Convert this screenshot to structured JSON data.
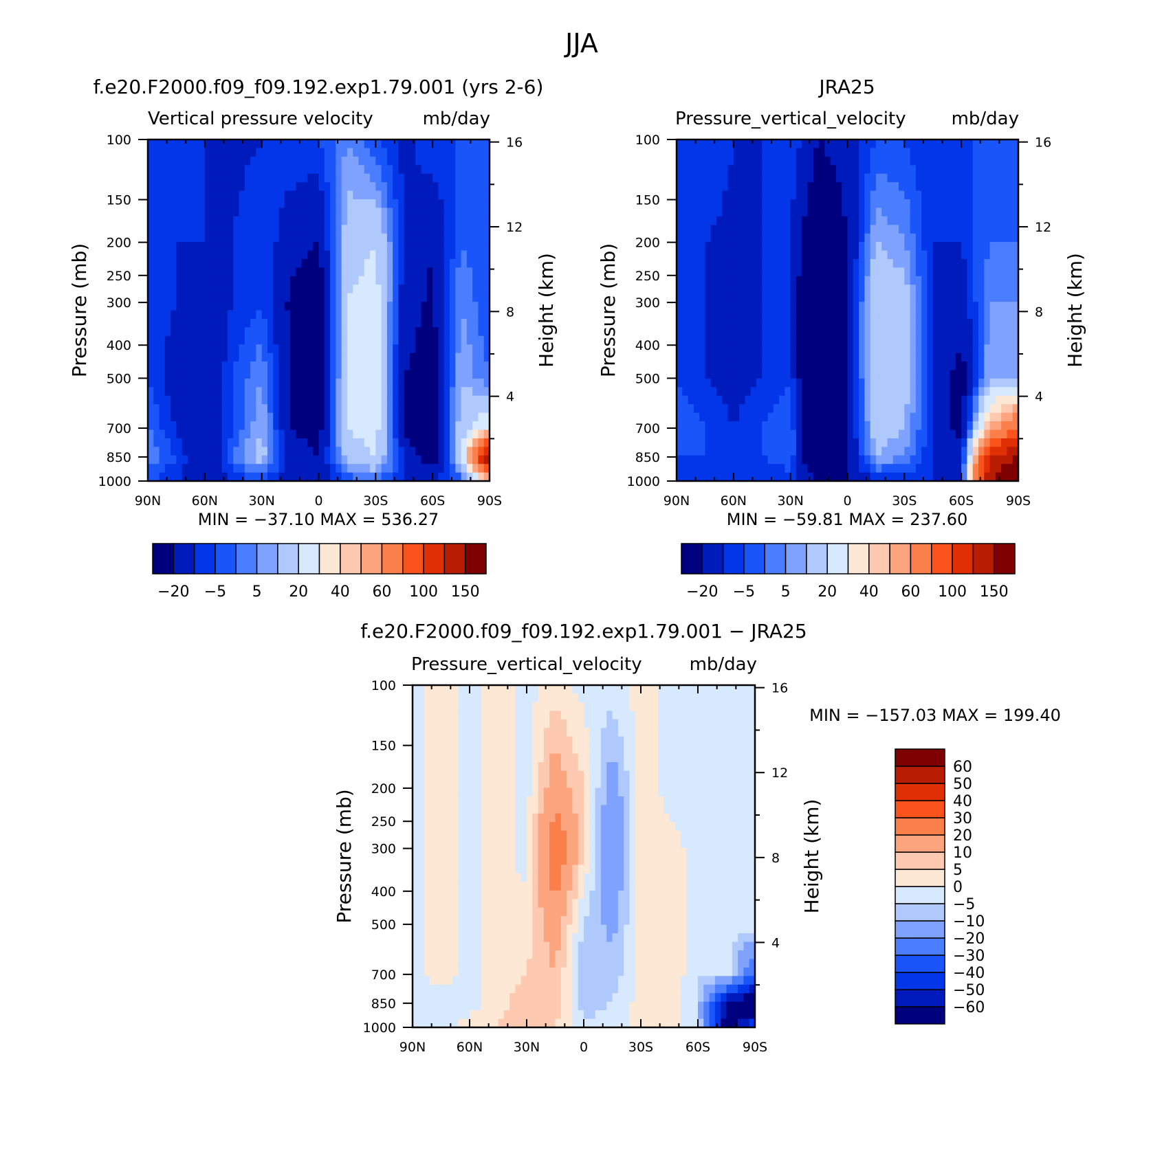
{
  "figure_title": "JJA",
  "chart_data": [
    {
      "type": "heatmap",
      "id": "model",
      "title": "f.e20.F2000.f09_f09.192.exp1.79.001 (yrs 2-6)",
      "subtitle_left": "Vertical pressure velocity",
      "subtitle_right": "mb/day",
      "xlabel": "",
      "ylabel": "Pressure (mb)",
      "ylabel_right": "Height (km)",
      "x_ticks": [
        "90N",
        "60N",
        "30N",
        "0",
        "30S",
        "60S",
        "90S"
      ],
      "x_values": [
        90,
        60,
        30,
        0,
        -30,
        -60,
        -90
      ],
      "xlim": [
        90,
        -90
      ],
      "y_ticks": [
        "100",
        "150",
        "200",
        "250",
        "300",
        "400",
        "500",
        "700",
        "850",
        "1000"
      ],
      "y_values": [
        100,
        150,
        200,
        250,
        300,
        400,
        500,
        700,
        850,
        1000
      ],
      "ylim": [
        1000,
        100
      ],
      "y2_ticks": [
        "16",
        "12",
        "8",
        "4"
      ],
      "y2_values": [
        16,
        12,
        8,
        4
      ],
      "stats": "MIN = −37.10   MAX = 536.27",
      "min": -37.1,
      "max": 536.27,
      "colorbar_orientation": "horizontal",
      "colorbar_labels": [
        "−20",
        "−5",
        "5",
        "20",
        "40",
        "60",
        "100",
        "150"
      ],
      "colorbar_colors": [
        "#00007f",
        "#001bbc",
        "#0336e8",
        "#1a55fa",
        "#4a7efe",
        "#7ea2fd",
        "#b0c9fd",
        "#d7e9fe",
        "#fde8d5",
        "#fdc9b0",
        "#fca47e",
        "#fb7f4a",
        "#f9531b",
        "#e02f04",
        "#b81c02",
        "#7f0000"
      ],
      "ref_lat": [
        90,
        75,
        60,
        45,
        30,
        15,
        0,
        -15,
        -30,
        -45,
        -60,
        -75,
        -90
      ],
      "ref_p": [
        100,
        200,
        300,
        500,
        700,
        850,
        1000
      ],
      "ref_values": [
        [
          -5,
          -10,
          -10,
          -12,
          -10,
          -5,
          -5,
          5,
          -5,
          -12,
          -5,
          -5,
          -5
        ],
        [
          -5,
          -10,
          -10,
          -10,
          -5,
          -15,
          -20,
          15,
          20,
          -10,
          -20,
          0,
          -5
        ],
        [
          -5,
          -10,
          -15,
          -10,
          -5,
          -22,
          -30,
          20,
          25,
          -15,
          -22,
          5,
          -5
        ],
        [
          -5,
          -15,
          -20,
          -5,
          5,
          -20,
          -30,
          20,
          25,
          -20,
          -25,
          10,
          0
        ],
        [
          0,
          -10,
          -20,
          -5,
          10,
          -20,
          -25,
          20,
          25,
          -22,
          -30,
          15,
          30
        ],
        [
          5,
          -5,
          -20,
          0,
          15,
          -15,
          -20,
          15,
          20,
          -10,
          -30,
          20,
          150
        ],
        [
          -5,
          -10,
          -15,
          -10,
          -5,
          -15,
          -15,
          -5,
          0,
          -10,
          -10,
          -5,
          40
        ]
      ]
    },
    {
      "type": "heatmap",
      "id": "obs",
      "title": "JRA25",
      "subtitle_left": "Pressure_vertical_velocity",
      "subtitle_right": "mb/day",
      "ylabel": "Pressure (mb)",
      "ylabel_right": "Height (km)",
      "x_ticks": [
        "90N",
        "60N",
        "30N",
        "0",
        "30S",
        "60S",
        "90S"
      ],
      "x_values": [
        90,
        60,
        30,
        0,
        -30,
        -60,
        -90
      ],
      "xlim": [
        90,
        -90
      ],
      "y_ticks": [
        "100",
        "150",
        "200",
        "250",
        "300",
        "400",
        "500",
        "700",
        "850",
        "1000"
      ],
      "y_values": [
        100,
        150,
        200,
        250,
        300,
        400,
        500,
        700,
        850,
        1000
      ],
      "ylim": [
        1000,
        100
      ],
      "y2_ticks": [
        "16",
        "12",
        "8",
        "4"
      ],
      "y2_values": [
        16,
        12,
        8,
        4
      ],
      "stats": "MIN = −59.81   MAX = 237.60",
      "min": -59.81,
      "max": 237.6,
      "colorbar_orientation": "horizontal",
      "colorbar_labels": [
        "−20",
        "−5",
        "5",
        "20",
        "40",
        "60",
        "100",
        "150"
      ],
      "colorbar_colors": [
        "#00007f",
        "#001bbc",
        "#0336e8",
        "#1a55fa",
        "#4a7efe",
        "#7ea2fd",
        "#b0c9fd",
        "#d7e9fe",
        "#fde8d5",
        "#fdc9b0",
        "#fca47e",
        "#fb7f4a",
        "#f9531b",
        "#e02f04",
        "#b81c02",
        "#7f0000"
      ],
      "ref_lat": [
        90,
        75,
        60,
        45,
        30,
        15,
        0,
        -15,
        -30,
        -45,
        -60,
        -75,
        -90
      ],
      "ref_p": [
        100,
        200,
        300,
        500,
        700,
        850,
        1000
      ],
      "ref_values": [
        [
          -5,
          -5,
          -10,
          -10,
          -5,
          -20,
          -15,
          -5,
          -5,
          -10,
          -5,
          -5,
          -5
        ],
        [
          -5,
          -10,
          -12,
          -10,
          -10,
          -35,
          -20,
          10,
          5,
          -10,
          -10,
          0,
          0
        ],
        [
          -5,
          -10,
          -12,
          -10,
          -10,
          -50,
          -20,
          20,
          15,
          -10,
          -15,
          5,
          5
        ],
        [
          -5,
          -10,
          -12,
          -10,
          -5,
          -55,
          -20,
          20,
          15,
          -10,
          -25,
          10,
          10
        ],
        [
          0,
          -5,
          -10,
          -5,
          0,
          -50,
          -20,
          15,
          10,
          -10,
          -25,
          50,
          80
        ],
        [
          -5,
          -5,
          -5,
          -5,
          0,
          -45,
          -20,
          10,
          5,
          -10,
          -15,
          120,
          150
        ],
        [
          -10,
          -10,
          -10,
          -10,
          -10,
          -20,
          -20,
          -10,
          -10,
          -10,
          -10,
          150,
          200
        ]
      ]
    },
    {
      "type": "heatmap",
      "id": "diff",
      "title": "f.e20.F2000.f09_f09.192.exp1.79.001 − JRA25",
      "subtitle_left": "Pressure_vertical_velocity",
      "subtitle_right": "mb/day",
      "ylabel": "Pressure (mb)",
      "ylabel_right": "Height (km)",
      "x_ticks": [
        "90N",
        "60N",
        "30N",
        "0",
        "30S",
        "60S",
        "90S"
      ],
      "x_values": [
        90,
        60,
        30,
        0,
        -30,
        -60,
        -90
      ],
      "xlim": [
        90,
        -90
      ],
      "y_ticks": [
        "100",
        "150",
        "200",
        "250",
        "300",
        "400",
        "500",
        "700",
        "850",
        "1000"
      ],
      "y_values": [
        100,
        150,
        200,
        250,
        300,
        400,
        500,
        700,
        850,
        1000
      ],
      "ylim": [
        1000,
        100
      ],
      "y2_ticks": [
        "16",
        "12",
        "8",
        "4"
      ],
      "y2_values": [
        16,
        12,
        8,
        4
      ],
      "stats": "MIN = −157.03   MAX = 199.40",
      "min": -157.03,
      "max": 199.4,
      "colorbar_orientation": "vertical",
      "colorbar_labels": [
        "60",
        "50",
        "40",
        "30",
        "20",
        "10",
        "5",
        "0",
        "−5",
        "−10",
        "−20",
        "−30",
        "−40",
        "−50",
        "−60"
      ],
      "colorbar_colors": [
        "#00007f",
        "#001bbc",
        "#0336e8",
        "#1a55fa",
        "#4a7efe",
        "#7ea2fd",
        "#b0c9fd",
        "#d7e9fe",
        "#fde8d5",
        "#fdc9b0",
        "#fca47e",
        "#fb7f4a",
        "#f9531b",
        "#e02f04",
        "#b81c02",
        "#7f0000"
      ],
      "ref_lat": [
        90,
        75,
        60,
        45,
        30,
        15,
        0,
        -15,
        -30,
        -45,
        -60,
        -75,
        -90
      ],
      "ref_p": [
        100,
        200,
        300,
        500,
        700,
        850,
        1000
      ],
      "ref_values": [
        [
          -2,
          2,
          -2,
          2,
          -2,
          3,
          -2,
          -2,
          2,
          -2,
          -2,
          -2,
          -2
        ],
        [
          -2,
          2,
          -2,
          2,
          -2,
          15,
          5,
          -15,
          3,
          -2,
          -2,
          -2,
          -2
        ],
        [
          -2,
          2,
          -2,
          2,
          -2,
          30,
          5,
          -20,
          3,
          2,
          -2,
          -2,
          -2
        ],
        [
          -2,
          2,
          -2,
          2,
          2,
          15,
          -5,
          -12,
          2,
          3,
          -3,
          -2,
          -2
        ],
        [
          -2,
          2,
          -2,
          3,
          5,
          10,
          -10,
          -8,
          2,
          5,
          -5,
          -2,
          -30
        ],
        [
          -3,
          -2,
          -2,
          3,
          8,
          8,
          -8,
          -5,
          2,
          3,
          -5,
          -60,
          -80
        ],
        [
          -2,
          -3,
          2,
          5,
          10,
          5,
          -3,
          -2,
          2,
          2,
          -3,
          -70,
          -40
        ]
      ]
    }
  ]
}
